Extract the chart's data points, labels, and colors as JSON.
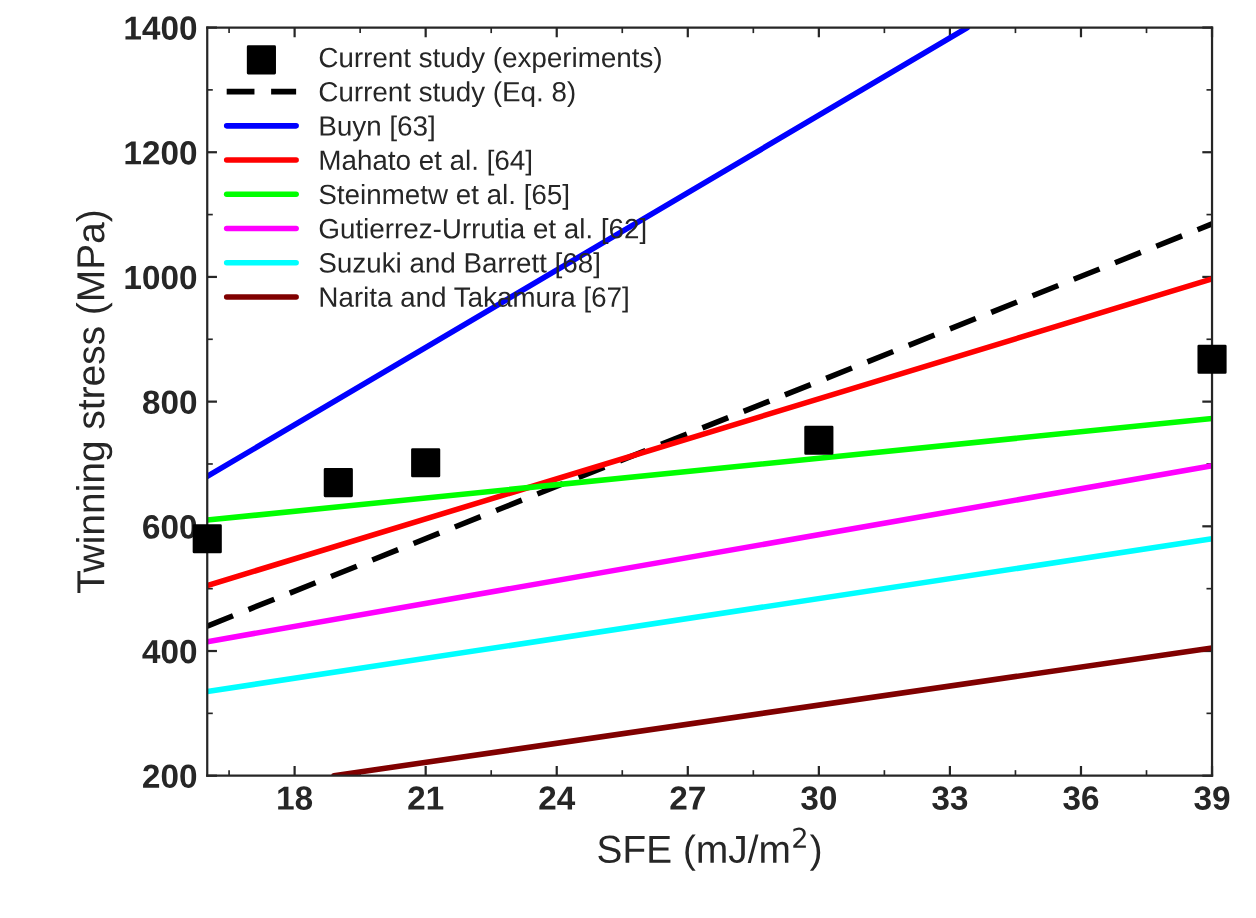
{
  "chart_data": {
    "type": "line",
    "xlabel": "SFE (mJ/m$^{2}$)",
    "ylabel": "Twinning stress (MPa)",
    "xlim": [
      16,
      39
    ],
    "xticks": [
      18,
      21,
      24,
      27,
      30,
      33,
      36,
      39
    ],
    "ylim": [
      200,
      1400
    ],
    "yticks": [
      200,
      400,
      600,
      800,
      1000,
      1200,
      1400
    ],
    "legend": "top left",
    "grid": false,
    "series": [
      {
        "name": "Current study (experiments)",
        "type": "scatter",
        "marker": "square",
        "color": "#000000",
        "x": [
          16,
          19,
          21,
          30,
          39
        ],
        "values": [
          580,
          670,
          702,
          738,
          868
        ]
      },
      {
        "name": "Current study (Eq. 8)",
        "line_style": "dashed",
        "color": "#000000",
        "x": [
          16,
          39
        ],
        "values": [
          440,
          1085
        ]
      },
      {
        "name": "Buyn [63]",
        "color": "#0000ff",
        "x": [
          16,
          33.4
        ],
        "values": [
          680,
          1400
        ]
      },
      {
        "name": "Mahato et al. [64]",
        "color": "#ff0000",
        "x": [
          16,
          39
        ],
        "values": [
          505,
          997
        ]
      },
      {
        "name": "Steinmetw et al. [65]",
        "color": "#00ff00",
        "x": [
          16,
          39
        ],
        "values": [
          610,
          773
        ]
      },
      {
        "name": "Gutierrez-Urrutia et al. [62]",
        "color": "#ff00ff",
        "x": [
          16,
          39
        ],
        "values": [
          415,
          697
        ]
      },
      {
        "name": "Suzuki and Barrett [68]",
        "color": "#00ffff",
        "x": [
          16,
          39
        ],
        "values": [
          335,
          580
        ]
      },
      {
        "name": "Narita and Takamura [67]",
        "color": "#800000",
        "x": [
          18.9,
          39
        ],
        "values": [
          200,
          405
        ]
      }
    ]
  }
}
